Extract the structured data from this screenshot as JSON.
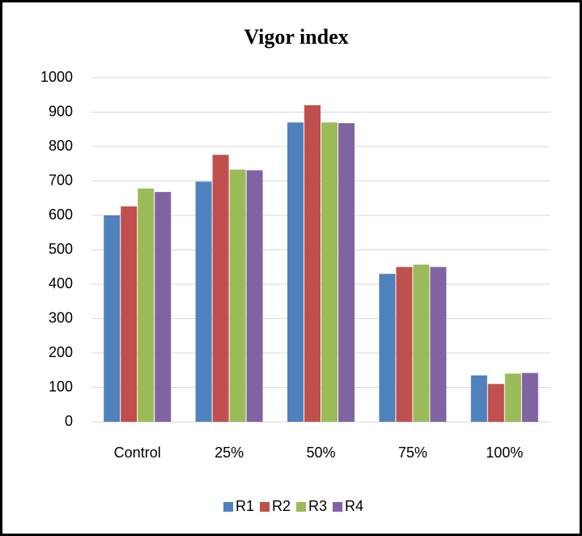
{
  "chart_data": {
    "type": "bar",
    "title": "Vigor index",
    "categories": [
      "Control",
      "25%",
      "50%",
      "75%",
      "100%"
    ],
    "series": [
      {
        "name": "R1",
        "color": "#4f81bd",
        "values": [
          600,
          698,
          870,
          430,
          135
        ]
      },
      {
        "name": "R2",
        "color": "#c0504d",
        "values": [
          626,
          776,
          920,
          450,
          110
        ]
      },
      {
        "name": "R3",
        "color": "#9bbb59",
        "values": [
          678,
          733,
          870,
          457,
          140
        ]
      },
      {
        "name": "R4",
        "color": "#8064a2",
        "values": [
          668,
          731,
          868,
          450,
          142
        ]
      }
    ],
    "ylim": [
      0,
      1000
    ],
    "yticks": [
      0,
      100,
      200,
      300,
      400,
      500,
      600,
      700,
      800,
      900,
      1000
    ],
    "grid": true,
    "legend": "bottom"
  }
}
